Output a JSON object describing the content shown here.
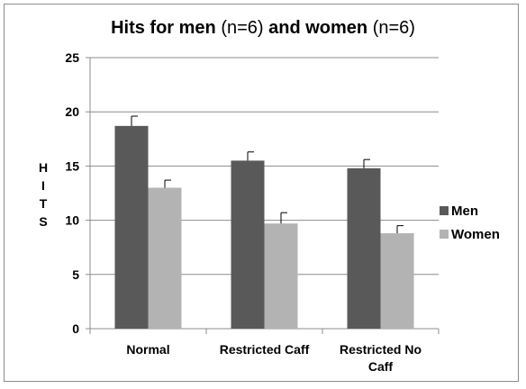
{
  "chart_data": {
    "type": "bar",
    "title_parts": [
      {
        "text": "Hits for men ",
        "bold": true
      },
      {
        "text": "(n=6)",
        "bold": false
      },
      {
        "text": " and women ",
        "bold": true
      },
      {
        "text": "(n=6)",
        "bold": false
      }
    ],
    "title": "Hits for men (n=6) and women (n=6)",
    "ylabel": "HITS",
    "ylabel_letters": [
      "H",
      "I",
      "T",
      "S"
    ],
    "xlabel": "",
    "categories": [
      {
        "lines": [
          "Normal"
        ]
      },
      {
        "lines": [
          "Restricted Caff"
        ]
      },
      {
        "lines": [
          "Restricted No",
          "Caff"
        ]
      }
    ],
    "ylim": [
      0,
      25
    ],
    "yticks": [
      0,
      5,
      10,
      15,
      20,
      25
    ],
    "grid": true,
    "legend_position": "right",
    "series": [
      {
        "name": "Men",
        "color": "#595959",
        "values": [
          18.7,
          15.5,
          14.8
        ],
        "errors": [
          0.9,
          0.8,
          0.8
        ]
      },
      {
        "name": "Women",
        "color": "#b3b3b3",
        "values": [
          13.0,
          9.7,
          8.8
        ],
        "errors": [
          0.7,
          1.0,
          0.7
        ]
      }
    ],
    "error_bar_color": "#000000"
  }
}
